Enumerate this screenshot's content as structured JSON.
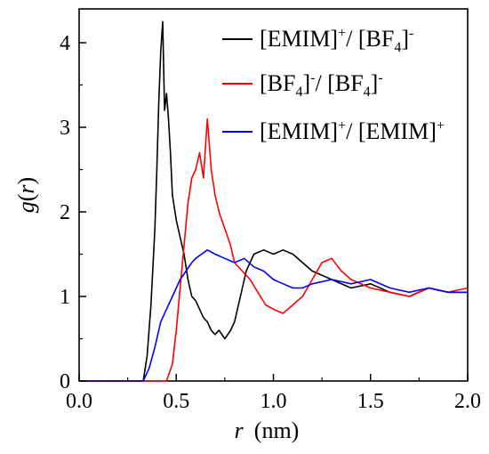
{
  "chart_data": {
    "type": "line",
    "xlabel_var": "r",
    "xlabel_unit": "(nm)",
    "ylabel_var": "g",
    "ylabel_arg": "r",
    "xlim": [
      0.0,
      2.0
    ],
    "ylim": [
      0,
      4.4
    ],
    "x_ticks": [
      "0.0",
      "0.5",
      "1.0",
      "1.5",
      "2.0"
    ],
    "y_ticks": [
      "0",
      "1",
      "2",
      "3",
      "4"
    ],
    "legend_position": "top-right",
    "grid": false,
    "series": [
      {
        "color": "#000000",
        "legend_a": "[EMIM]",
        "legend_a_sup": "+",
        "legend_sep": "/ ",
        "legend_b": "[BF",
        "legend_b_sub": "4",
        "legend_b_close": "]",
        "legend_b_sup": "-",
        "x": [
          0.0,
          0.33,
          0.35,
          0.37,
          0.39,
          0.4,
          0.41,
          0.42,
          0.43,
          0.44,
          0.45,
          0.46,
          0.47,
          0.48,
          0.5,
          0.52,
          0.54,
          0.56,
          0.58,
          0.6,
          0.62,
          0.64,
          0.66,
          0.68,
          0.7,
          0.72,
          0.75,
          0.78,
          0.8,
          0.83,
          0.86,
          0.9,
          0.95,
          1.0,
          1.05,
          1.1,
          1.15,
          1.2,
          1.3,
          1.4,
          1.5,
          1.6,
          1.7,
          1.8,
          1.9,
          2.0
        ],
        "y": [
          0.0,
          0.0,
          0.3,
          0.9,
          1.8,
          2.5,
          3.3,
          3.9,
          4.25,
          3.2,
          3.4,
          3.1,
          2.7,
          2.2,
          1.9,
          1.7,
          1.5,
          1.2,
          1.0,
          0.95,
          0.85,
          0.75,
          0.7,
          0.6,
          0.55,
          0.6,
          0.5,
          0.6,
          0.7,
          1.0,
          1.3,
          1.5,
          1.55,
          1.5,
          1.55,
          1.5,
          1.4,
          1.3,
          1.2,
          1.1,
          1.15,
          1.05,
          1.0,
          1.1,
          1.05,
          1.05
        ]
      },
      {
        "color": "#ff0000",
        "legend_a": "[BF",
        "legend_a_sub": "4",
        "legend_a_close": "]",
        "legend_a_sup": "-",
        "legend_sep": "/ ",
        "legend_b": "[BF",
        "legend_b_sub": "4",
        "legend_b_close": "]",
        "legend_b_sup": "-",
        "x": [
          0.0,
          0.45,
          0.48,
          0.5,
          0.52,
          0.54,
          0.56,
          0.58,
          0.6,
          0.62,
          0.64,
          0.66,
          0.68,
          0.7,
          0.72,
          0.75,
          0.78,
          0.8,
          0.84,
          0.88,
          0.92,
          0.96,
          1.0,
          1.05,
          1.1,
          1.15,
          1.2,
          1.25,
          1.3,
          1.35,
          1.4,
          1.5,
          1.6,
          1.7,
          1.8,
          1.9,
          2.0
        ],
        "y": [
          0.0,
          0.0,
          0.2,
          0.6,
          1.1,
          1.6,
          2.1,
          2.4,
          2.5,
          2.7,
          2.4,
          3.1,
          2.5,
          2.2,
          2.0,
          1.8,
          1.6,
          1.4,
          1.3,
          1.2,
          1.05,
          0.9,
          0.85,
          0.8,
          0.9,
          1.0,
          1.2,
          1.4,
          1.45,
          1.3,
          1.2,
          1.1,
          1.05,
          1.0,
          1.1,
          1.05,
          1.1
        ]
      },
      {
        "color": "#0000ff",
        "legend_a": "[EMIM]",
        "legend_a_sup": "+",
        "legend_sep": "/ ",
        "legend_b": "[EMIM]",
        "legend_b_sup": "+",
        "x": [
          0.0,
          0.33,
          0.36,
          0.39,
          0.42,
          0.45,
          0.48,
          0.5,
          0.52,
          0.55,
          0.58,
          0.6,
          0.63,
          0.66,
          0.7,
          0.75,
          0.8,
          0.85,
          0.9,
          0.95,
          1.0,
          1.05,
          1.1,
          1.15,
          1.2,
          1.3,
          1.4,
          1.5,
          1.6,
          1.7,
          1.8,
          1.9,
          2.0
        ],
        "y": [
          0.0,
          0.0,
          0.15,
          0.4,
          0.7,
          0.85,
          1.0,
          1.1,
          1.2,
          1.3,
          1.4,
          1.45,
          1.5,
          1.55,
          1.5,
          1.45,
          1.4,
          1.45,
          1.35,
          1.3,
          1.2,
          1.15,
          1.1,
          1.1,
          1.15,
          1.2,
          1.15,
          1.2,
          1.1,
          1.05,
          1.1,
          1.05,
          1.05
        ]
      }
    ]
  }
}
